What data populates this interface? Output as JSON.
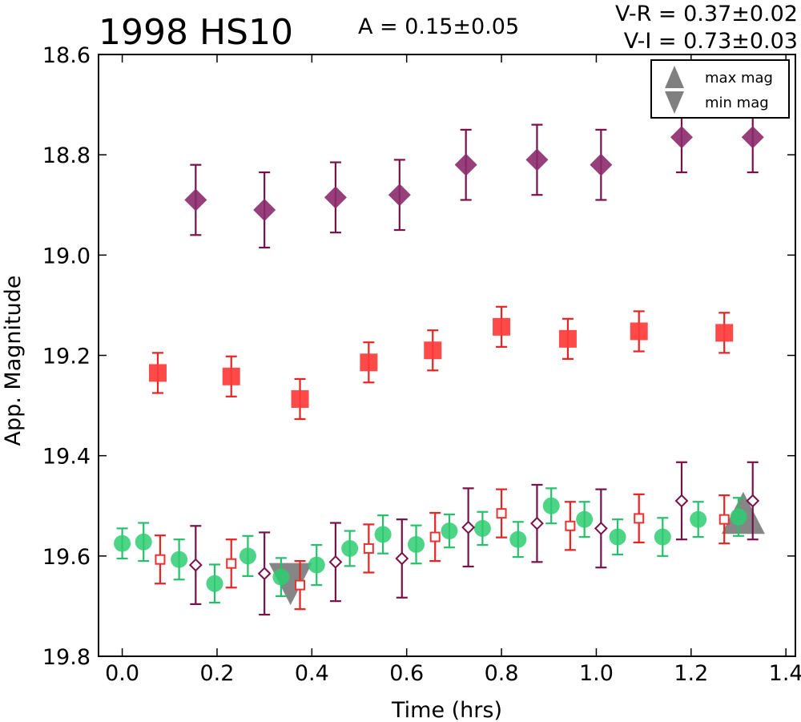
{
  "chart_data": {
    "type": "scatter",
    "title": "1998 HS10",
    "annotations": {
      "amplitude": "A  = 0.15±0.05",
      "v_r": "V-R = 0.37±0.02",
      "v_i": "V-I  = 0.73±0.03"
    },
    "xlabel": "Time (hrs)",
    "ylabel": "App. Magnitude",
    "xlim": [
      -0.05,
      1.42
    ],
    "ylim": [
      19.8,
      18.6
    ],
    "y_inverted": true,
    "xticks": [
      "0.0",
      "0.2",
      "0.4",
      "0.6",
      "0.8",
      "1.0",
      "1.2",
      "1.4"
    ],
    "xtick_values": [
      0.0,
      0.2,
      0.4,
      0.6,
      0.8,
      1.0,
      1.2,
      1.4
    ],
    "yticks": [
      "18.6",
      "18.8",
      "19.0",
      "19.2",
      "19.4",
      "19.6",
      "19.8"
    ],
    "ytick_values": [
      18.6,
      18.8,
      19.0,
      19.2,
      19.4,
      19.6,
      19.8
    ],
    "grid": false,
    "legend_position": "top-right",
    "legend": [
      {
        "label": "max mag",
        "marker": "triangle-up",
        "color": "#808080"
      },
      {
        "label": "min mag",
        "marker": "triangle-down",
        "color": "#808080"
      }
    ],
    "series": [
      {
        "marker": "diamond-filled",
        "color": "#8b2a6b",
        "errcolor": "#7a1048",
        "points": [
          {
            "x": 0.155,
            "y": 18.89,
            "err": 0.07
          },
          {
            "x": 0.3,
            "y": 18.91,
            "err": 0.075
          },
          {
            "x": 0.45,
            "y": 18.885,
            "err": 0.07
          },
          {
            "x": 0.585,
            "y": 18.88,
            "err": 0.07
          },
          {
            "x": 0.725,
            "y": 18.82,
            "err": 0.07
          },
          {
            "x": 0.875,
            "y": 18.81,
            "err": 0.07
          },
          {
            "x": 1.01,
            "y": 18.82,
            "err": 0.07
          },
          {
            "x": 1.18,
            "y": 18.765,
            "err": 0.07
          },
          {
            "x": 1.33,
            "y": 18.765,
            "err": 0.07
          }
        ]
      },
      {
        "marker": "square-filled",
        "color": "#ff3b3b",
        "errcolor": "#ee2020",
        "points": [
          {
            "x": 0.075,
            "y": 19.235,
            "err": 0.04
          },
          {
            "x": 0.23,
            "y": 19.242,
            "err": 0.04
          },
          {
            "x": 0.375,
            "y": 19.287,
            "err": 0.04
          },
          {
            "x": 0.52,
            "y": 19.214,
            "err": 0.04
          },
          {
            "x": 0.655,
            "y": 19.19,
            "err": 0.04
          },
          {
            "x": 0.8,
            "y": 19.143,
            "err": 0.04
          },
          {
            "x": 0.94,
            "y": 19.167,
            "err": 0.04
          },
          {
            "x": 1.09,
            "y": 19.152,
            "err": 0.04
          },
          {
            "x": 1.27,
            "y": 19.155,
            "err": 0.04
          }
        ]
      },
      {
        "marker": "circle-filled",
        "color": "#2ecc71",
        "errcolor": "#27c06a",
        "points": [
          {
            "x": 0.0,
            "y": 19.575,
            "err": 0.03
          },
          {
            "x": 0.045,
            "y": 19.572,
            "err": 0.038
          },
          {
            "x": 0.12,
            "y": 19.607,
            "err": 0.04
          },
          {
            "x": 0.195,
            "y": 19.655,
            "err": 0.038
          },
          {
            "x": 0.265,
            "y": 19.6,
            "err": 0.04
          },
          {
            "x": 0.335,
            "y": 19.642,
            "err": 0.038
          },
          {
            "x": 0.41,
            "y": 19.618,
            "err": 0.04
          },
          {
            "x": 0.48,
            "y": 19.585,
            "err": 0.035
          },
          {
            "x": 0.55,
            "y": 19.557,
            "err": 0.038
          },
          {
            "x": 0.62,
            "y": 19.577,
            "err": 0.038
          },
          {
            "x": 0.69,
            "y": 19.55,
            "err": 0.033
          },
          {
            "x": 0.76,
            "y": 19.545,
            "err": 0.033
          },
          {
            "x": 0.835,
            "y": 19.567,
            "err": 0.035
          },
          {
            "x": 0.905,
            "y": 19.5,
            "err": 0.035
          },
          {
            "x": 0.975,
            "y": 19.527,
            "err": 0.035
          },
          {
            "x": 1.045,
            "y": 19.562,
            "err": 0.035
          },
          {
            "x": 1.14,
            "y": 19.562,
            "err": 0.038
          },
          {
            "x": 1.215,
            "y": 19.527,
            "err": 0.035
          },
          {
            "x": 1.3,
            "y": 19.522,
            "err": 0.038
          }
        ]
      },
      {
        "marker": "square-open",
        "color": "#ee3030",
        "errcolor": "#ee2020",
        "points": [
          {
            "x": 0.08,
            "y": 19.607,
            "err": 0.048
          },
          {
            "x": 0.23,
            "y": 19.615,
            "err": 0.048
          },
          {
            "x": 0.375,
            "y": 19.658,
            "err": 0.048
          },
          {
            "x": 0.52,
            "y": 19.585,
            "err": 0.048
          },
          {
            "x": 0.66,
            "y": 19.562,
            "err": 0.048
          },
          {
            "x": 0.8,
            "y": 19.515,
            "err": 0.048
          },
          {
            "x": 0.945,
            "y": 19.54,
            "err": 0.048
          },
          {
            "x": 1.09,
            "y": 19.525,
            "err": 0.048
          },
          {
            "x": 1.27,
            "y": 19.527,
            "err": 0.048
          }
        ]
      },
      {
        "marker": "diamond-open",
        "color": "#7a1048",
        "errcolor": "#7a1048",
        "points": [
          {
            "x": 0.155,
            "y": 19.618,
            "err": 0.078
          },
          {
            "x": 0.3,
            "y": 19.635,
            "err": 0.082
          },
          {
            "x": 0.45,
            "y": 19.612,
            "err": 0.078
          },
          {
            "x": 0.59,
            "y": 19.605,
            "err": 0.078
          },
          {
            "x": 0.73,
            "y": 19.543,
            "err": 0.078
          },
          {
            "x": 0.875,
            "y": 19.535,
            "err": 0.077
          },
          {
            "x": 1.01,
            "y": 19.545,
            "err": 0.078
          },
          {
            "x": 1.18,
            "y": 19.49,
            "err": 0.077
          },
          {
            "x": 1.33,
            "y": 19.49,
            "err": 0.077
          }
        ]
      }
    ],
    "extrema_markers": [
      {
        "type": "min mag",
        "x": 0.355,
        "y": 19.65,
        "marker": "triangle-down",
        "color": "#808080"
      },
      {
        "type": "max mag",
        "x": 1.31,
        "y": 19.52,
        "marker": "triangle-up",
        "color": "#808080"
      }
    ]
  }
}
